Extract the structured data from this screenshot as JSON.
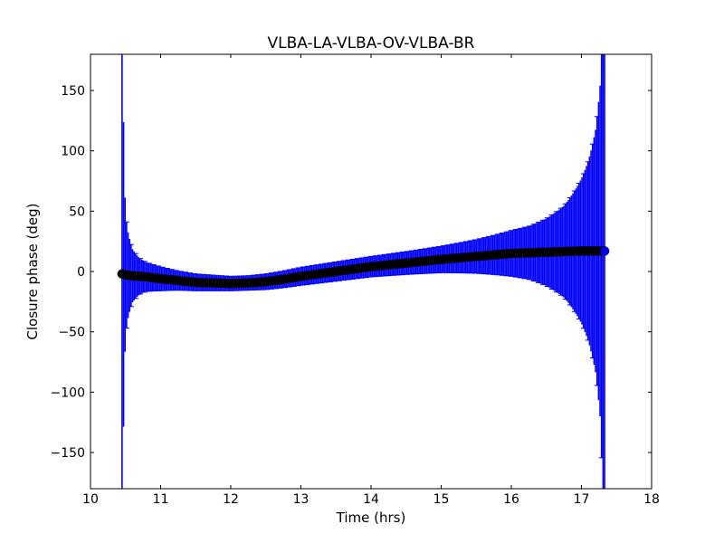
{
  "chart_data": {
    "type": "scatter",
    "title": "VLBA-LA-VLBA-OV-VLBA-BR",
    "xlabel": "Time (hrs)",
    "ylabel": "Closure phase (deg)",
    "xlim": [
      10,
      18
    ],
    "ylim": [
      -180,
      180
    ],
    "xticks": [
      "10",
      "11",
      "12",
      "13",
      "14",
      "15",
      "16",
      "17",
      "18"
    ],
    "yticks": [
      "−150",
      "−100",
      "−50",
      "0",
      "50",
      "100",
      "150"
    ],
    "grid": false,
    "marker_color": "#000000",
    "last_marker_color": "#0000ff",
    "errorbar_color": "#0000ff",
    "series": [
      {
        "x": [
          10.45,
          10.48,
          10.52,
          10.6,
          10.7,
          10.8,
          11.0,
          11.25,
          11.5,
          11.75,
          12.0,
          12.25,
          12.5,
          12.75,
          13.0,
          13.5,
          14.0,
          14.5,
          15.0,
          15.5,
          16.0,
          16.25,
          16.5,
          16.75,
          17.0,
          17.1,
          17.2,
          17.27,
          17.3,
          17.33
        ],
        "y": [
          -2,
          -2.5,
          -3,
          -3.5,
          -4,
          -4.5,
          -6,
          -7.5,
          -9,
          -9.5,
          -10,
          -9.5,
          -8.5,
          -6.5,
          -4,
          0,
          4,
          7,
          10,
          12.5,
          15,
          15.5,
          16,
          16.5,
          17,
          17,
          17,
          17,
          17,
          17
        ],
        "err": [
          400,
          80,
          40,
          22,
          15,
          12,
          10,
          8,
          7,
          6.5,
          6,
          6,
          6.5,
          7,
          7.5,
          8,
          8.5,
          9.5,
          11,
          14,
          19,
          22,
          28,
          38,
          60,
          75,
          100,
          140,
          200,
          400
        ]
      }
    ]
  }
}
